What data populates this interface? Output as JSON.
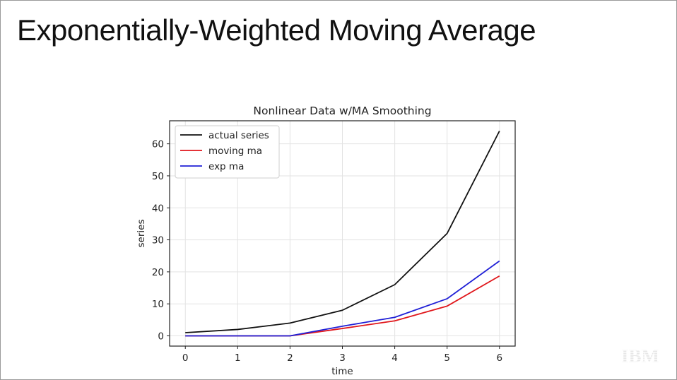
{
  "slide": {
    "title": "Exponentially-Weighted Moving Average",
    "logo_text": "IBM"
  },
  "chart_data": {
    "type": "line",
    "title": "Nonlinear Data w/MA Smoothing",
    "xlabel": "time",
    "ylabel": "series",
    "x": [
      0,
      1,
      2,
      3,
      4,
      5,
      6
    ],
    "xlim": [
      -0.3,
      6.3
    ],
    "ylim": [
      -3.2,
      67.2
    ],
    "xticks": [
      0,
      1,
      2,
      3,
      4,
      5,
      6
    ],
    "yticks": [
      0,
      10,
      20,
      30,
      40,
      50,
      60
    ],
    "grid": true,
    "legend_position": "upper-left",
    "series": [
      {
        "name": "actual series",
        "color": "#111111",
        "values": [
          1,
          2,
          4,
          8,
          16,
          32,
          64
        ]
      },
      {
        "name": "moving ma",
        "color": "#e0161b",
        "values": [
          0,
          0,
          0,
          2.3,
          4.7,
          9.3,
          18.7
        ]
      },
      {
        "name": "exp ma",
        "color": "#1f1fd6",
        "values": [
          0,
          0,
          0,
          3.0,
          5.8,
          11.6,
          23.4
        ]
      }
    ]
  }
}
